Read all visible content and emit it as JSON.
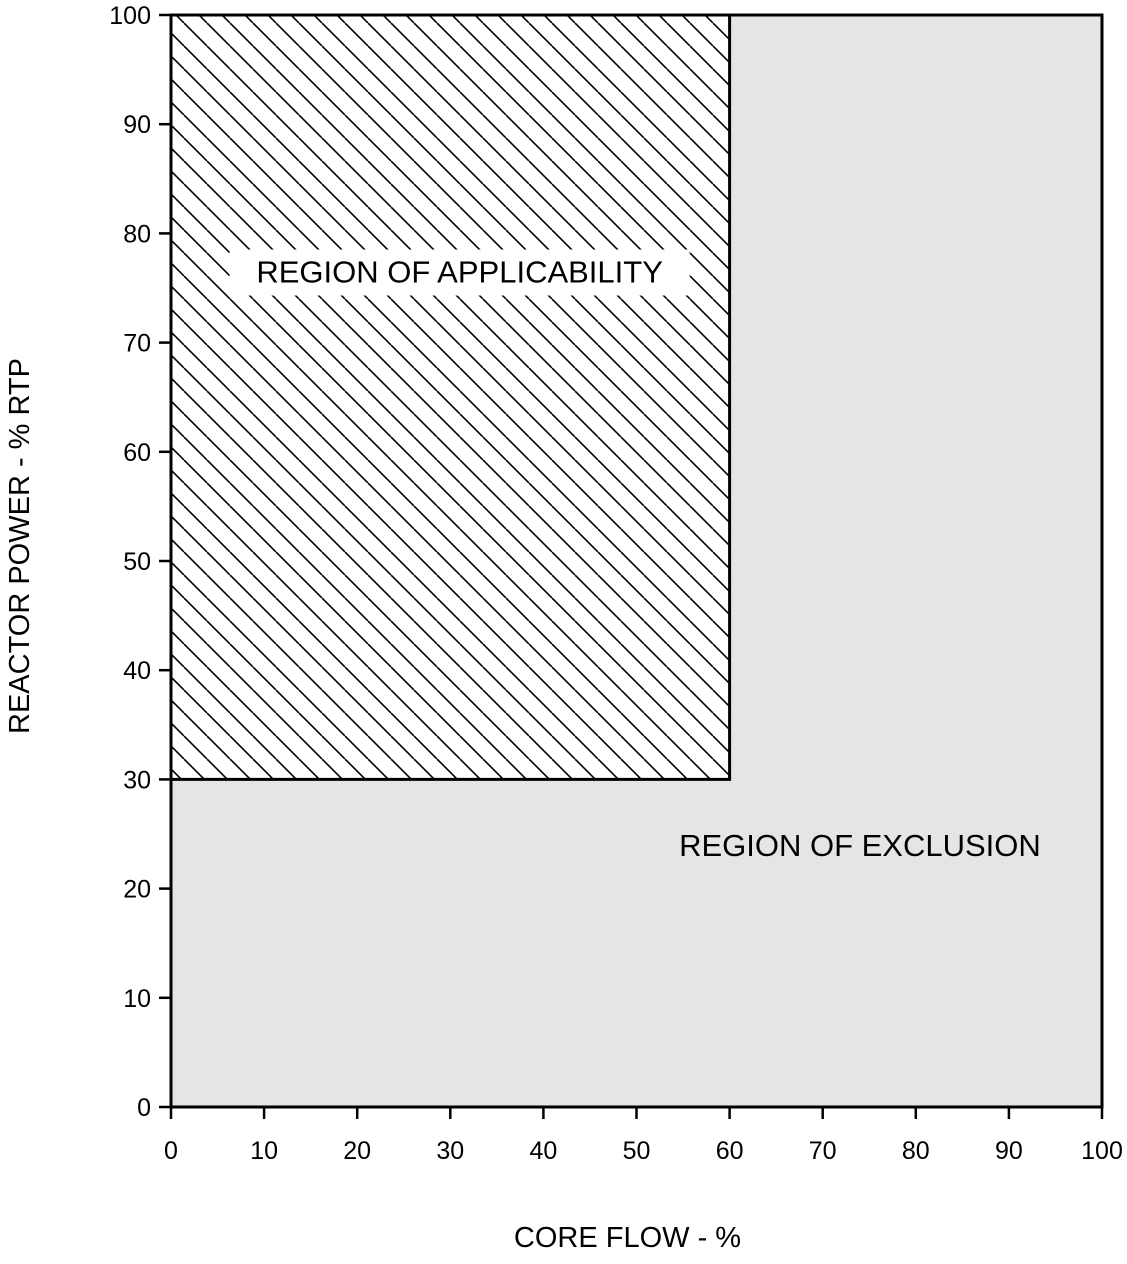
{
  "chart_data": {
    "type": "area",
    "xlabel": "CORE FLOW - %",
    "ylabel": "REACTOR POWER - % RTP",
    "xlim": [
      0,
      100
    ],
    "ylim": [
      0,
      100
    ],
    "x_ticks": [
      0,
      10,
      20,
      30,
      40,
      50,
      60,
      70,
      80,
      90,
      100
    ],
    "y_ticks": [
      0,
      10,
      20,
      30,
      40,
      50,
      60,
      70,
      80,
      90,
      100
    ],
    "grid": false,
    "regions": [
      {
        "label": "REGION OF EXCLUSION",
        "fill": "#e5e5e5",
        "pattern": "solid",
        "polygon": [
          [
            0,
            0
          ],
          [
            100,
            0
          ],
          [
            100,
            100
          ],
          [
            60,
            100
          ],
          [
            60,
            30
          ],
          [
            0,
            30
          ]
        ],
        "label_at": [
          74,
          23
        ]
      },
      {
        "label": "REGION OF APPLICABILITY",
        "fill": "#ffffff",
        "pattern": "diagonal-hatch",
        "polygon": [
          [
            0,
            30
          ],
          [
            60,
            30
          ],
          [
            60,
            100
          ],
          [
            0,
            100
          ]
        ],
        "label_at": [
          31,
          75.5
        ]
      }
    ]
  },
  "colors": {
    "exclusion_fill": "#e5e5e5",
    "applicability_fill": "#ffffff",
    "line": "#000000"
  }
}
